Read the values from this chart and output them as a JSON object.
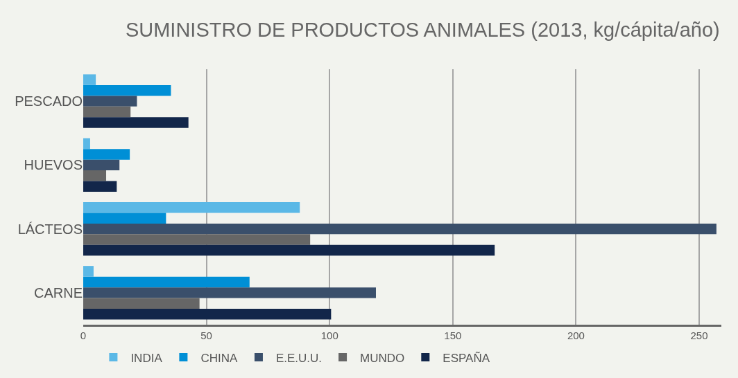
{
  "chart_data": {
    "type": "bar",
    "orientation": "horizontal",
    "title": "SUMINISTRO DE PRODUCTOS ANIMALES (2013, kg/cápita/año)",
    "categories": [
      "PESCADO",
      "HUEVOS",
      "LÁCTEOS",
      "CARNE"
    ],
    "series": [
      {
        "name": "INDIA",
        "color": "#5bb8e6",
        "values": [
          5.1,
          2.8,
          87.9,
          4.2
        ]
      },
      {
        "name": "CHINA",
        "color": "#008fd6",
        "values": [
          35.6,
          18.9,
          33.6,
          67.5
        ]
      },
      {
        "name": "E.E.U.U.",
        "color": "#3a4f6b",
        "values": [
          21.8,
          14.7,
          257,
          118.8
        ]
      },
      {
        "name": "MUNDO",
        "color": "#666666",
        "values": [
          19.2,
          9.3,
          92.1,
          47.2
        ]
      },
      {
        "name": "ESPAÑA",
        "color": "#12264a",
        "values": [
          42.7,
          13.6,
          167,
          100.6
        ]
      }
    ],
    "xlim": [
      0,
      259
    ],
    "xticks": [
      0,
      50,
      100,
      150,
      200,
      250
    ],
    "grid": "x",
    "legend": "bottom"
  }
}
